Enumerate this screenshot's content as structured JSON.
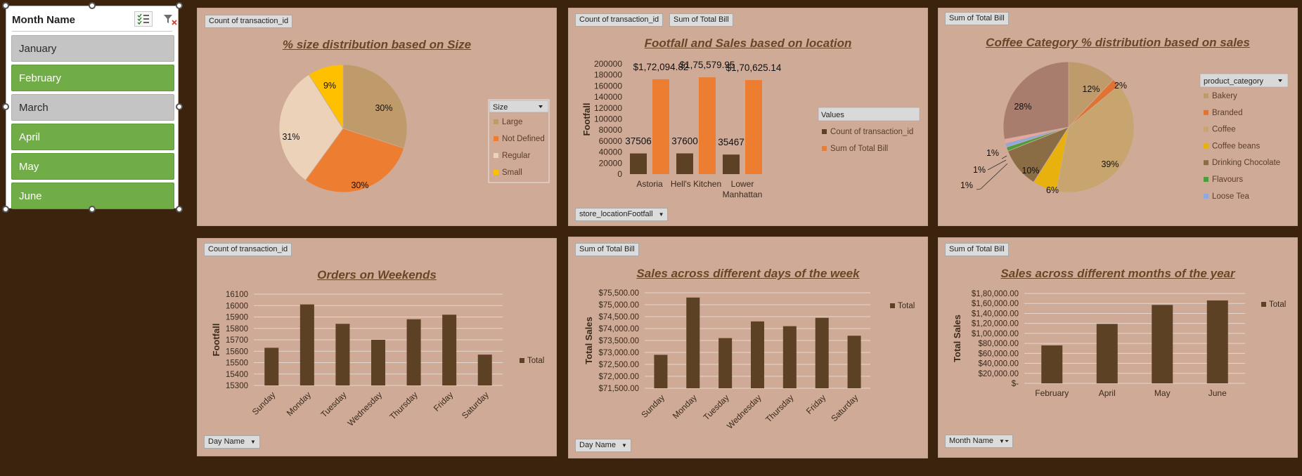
{
  "slicer": {
    "title": "Month Name",
    "items": [
      {
        "label": "January",
        "selected": false
      },
      {
        "label": "February",
        "selected": true
      },
      {
        "label": "March",
        "selected": false
      },
      {
        "label": "April",
        "selected": true
      },
      {
        "label": "May",
        "selected": true
      },
      {
        "label": "June",
        "selected": true
      }
    ]
  },
  "colors": {
    "background": "#3b230d",
    "panel": "#cfaa97",
    "bar_dark": "#5c4124",
    "bar_orange": "#ed7d31",
    "title": "#6b4626",
    "selected": "#70ad47"
  },
  "panels": {
    "size": {
      "field_button": "Count of transaction_id",
      "title": "% size distribution based on Size"
    },
    "location": {
      "field_buttons": [
        "Count of transaction_id",
        "Sum of Total Bill"
      ],
      "title": "Footfall and Sales based on location",
      "filter_button": "store_locationFootfall"
    },
    "category": {
      "field_button": "Sum of Total Bill",
      "title": "Coffee Category % distribution based on sales"
    },
    "weekend": {
      "field_button": "Count of transaction_id",
      "title": "Orders on Weekends",
      "filter_button": "Day Name"
    },
    "daysales": {
      "field_button": "Sum of Total Bill",
      "title": "Sales across different days of the week",
      "filter_button": "Day Name"
    },
    "monthsales": {
      "field_button": "Sum of Total Bill",
      "title": "Sales across different months of the year",
      "filter_button": "Month Name"
    }
  },
  "chart_data": [
    {
      "id": "size",
      "type": "pie",
      "title": "% size distribution based on Size",
      "legend_title": "Size",
      "legend_position": "right",
      "categories": [
        "Large",
        "Not Defined",
        "Regular",
        "Small"
      ],
      "values": [
        30,
        30,
        31,
        9
      ],
      "labels": [
        "30%",
        "30%",
        "31%",
        "9%"
      ],
      "colors": [
        "#bf9b6b",
        "#ed7d31",
        "#ecd2b9",
        "#ffc000"
      ]
    },
    {
      "id": "location",
      "type": "bar",
      "title": "Footfall and Sales based on location",
      "ylabel": "Footfall",
      "legend_title": "Values",
      "legend_position": "right",
      "categories": [
        "Astoria",
        "Hell's Kitchen",
        "Lower Manhattan"
      ],
      "category_lines": [
        [
          "Astoria"
        ],
        [
          "Hell's Kitchen"
        ],
        [
          "Lower",
          "Manhattan"
        ]
      ],
      "series": [
        {
          "name": "Count of transaction_id",
          "values": [
            37506,
            37600,
            35467
          ],
          "labels": [
            "37506",
            "37600",
            "35467"
          ],
          "color": "#5c4124"
        },
        {
          "name": "Sum of Total Bill",
          "values": [
            172094.82,
            175579.95,
            170625.14
          ],
          "labels": [
            "$1,72,094.82",
            "$1,75,579.95",
            "$1,70,625.14"
          ],
          "color": "#ed7d31"
        }
      ],
      "ylim": [
        0,
        200000
      ],
      "yticks": [
        0,
        20000,
        40000,
        60000,
        80000,
        100000,
        120000,
        140000,
        160000,
        180000,
        200000
      ],
      "ytick_labels": [
        "0",
        "20000",
        "40000",
        "60000",
        "80000",
        "100000",
        "120000",
        "140000",
        "160000",
        "180000",
        "200000"
      ],
      "grid": false
    },
    {
      "id": "category",
      "type": "pie",
      "title": "Coffee Category % distribution based on sales",
      "legend_title": "product_category",
      "legend_position": "right",
      "legend_categories": [
        "Bakery",
        "Branded",
        "Coffee",
        "Coffee beans",
        "Drinking Chocolate",
        "Flavours",
        "Loose Tea"
      ],
      "legend_colors": [
        "#bf9b6b",
        "#e07332",
        "#c8a46e",
        "#e8b10d",
        "#8b6d45",
        "#4e9c3e",
        "#8ea8e0"
      ],
      "slices": [
        {
          "category": "Bakery",
          "value": 12,
          "label": "12%",
          "color": "#bf9b6b"
        },
        {
          "category": "Branded",
          "value": 2,
          "label": "2%",
          "color": "#e07332"
        },
        {
          "category": "Coffee",
          "value": 39,
          "label": "39%",
          "color": "#c8a46e"
        },
        {
          "category": "Coffee beans",
          "value": 6,
          "label": "6%",
          "color": "#e8b10d"
        },
        {
          "category": "Drinking Chocolate",
          "value": 10,
          "label": "10%",
          "color": "#8b6d45"
        },
        {
          "category": "Flavours",
          "value": 1,
          "label": "1%",
          "color": "#4e9c3e"
        },
        {
          "category": "Loose Tea",
          "value": 1,
          "label": "1%",
          "color": "#8ea8e0"
        },
        {
          "category": "",
          "value": 1,
          "label": "1%",
          "color": "#e8a6a0"
        },
        {
          "category": "",
          "value": 28,
          "label": "28%",
          "color": "#a87d6e"
        }
      ]
    },
    {
      "id": "weekend",
      "type": "bar",
      "title": "Orders on Weekends",
      "ylabel": "Footfall",
      "legend_position": "right",
      "categories": [
        "Sunday",
        "Monday",
        "Tuesday",
        "Wednesday",
        "Thursday",
        "Friday",
        "Saturday"
      ],
      "series": [
        {
          "name": "Total",
          "values": [
            15630,
            16010,
            15840,
            15700,
            15880,
            15920,
            15570
          ],
          "color": "#5c4124"
        }
      ],
      "ylim": [
        15300,
        16100
      ],
      "yticks": [
        15300,
        15400,
        15500,
        15600,
        15700,
        15800,
        15900,
        16000,
        16100
      ],
      "ytick_labels": [
        "15300",
        "15400",
        "15500",
        "15600",
        "15700",
        "15800",
        "15900",
        "16000",
        "16100"
      ],
      "grid": true
    },
    {
      "id": "daysales",
      "type": "bar",
      "title": "Sales across different days of the week",
      "ylabel": "Total Sales",
      "legend_position": "right",
      "categories": [
        "Sunday",
        "Monday",
        "Tuesday",
        "Wednesday",
        "Thursday",
        "Friday",
        "Saturday"
      ],
      "series": [
        {
          "name": "Total",
          "values": [
            72900,
            75300,
            73600,
            74300,
            74100,
            74450,
            73700
          ],
          "color": "#5c4124"
        }
      ],
      "ylim": [
        71500,
        75500
      ],
      "yticks": [
        71500,
        72000,
        72500,
        73000,
        73500,
        74000,
        74500,
        75000,
        75500
      ],
      "ytick_labels": [
        "$71,500.00",
        "$72,000.00",
        "$72,500.00",
        "$73,000.00",
        "$73,500.00",
        "$74,000.00",
        "$74,500.00",
        "$75,000.00",
        "$75,500.00"
      ],
      "grid": true
    },
    {
      "id": "monthsales",
      "type": "bar",
      "title": "Sales across different months of the year",
      "ylabel": "Total Sales",
      "legend_position": "right",
      "categories": [
        "February",
        "April",
        "May",
        "June"
      ],
      "series": [
        {
          "name": "Total",
          "values": [
            76000,
            119000,
            157000,
            166000
          ],
          "color": "#5c4124"
        }
      ],
      "ylim": [
        0,
        180000
      ],
      "yticks": [
        0,
        20000,
        40000,
        60000,
        80000,
        100000,
        120000,
        140000,
        160000,
        180000
      ],
      "ytick_labels": [
        "$-",
        "$20,000.00",
        "$40,000.00",
        "$60,000.00",
        "$80,000.00",
        "$1,00,000.00",
        "$1,20,000.00",
        "$1,40,000.00",
        "$1,60,000.00",
        "$1,80,000.00"
      ],
      "grid": true
    }
  ]
}
